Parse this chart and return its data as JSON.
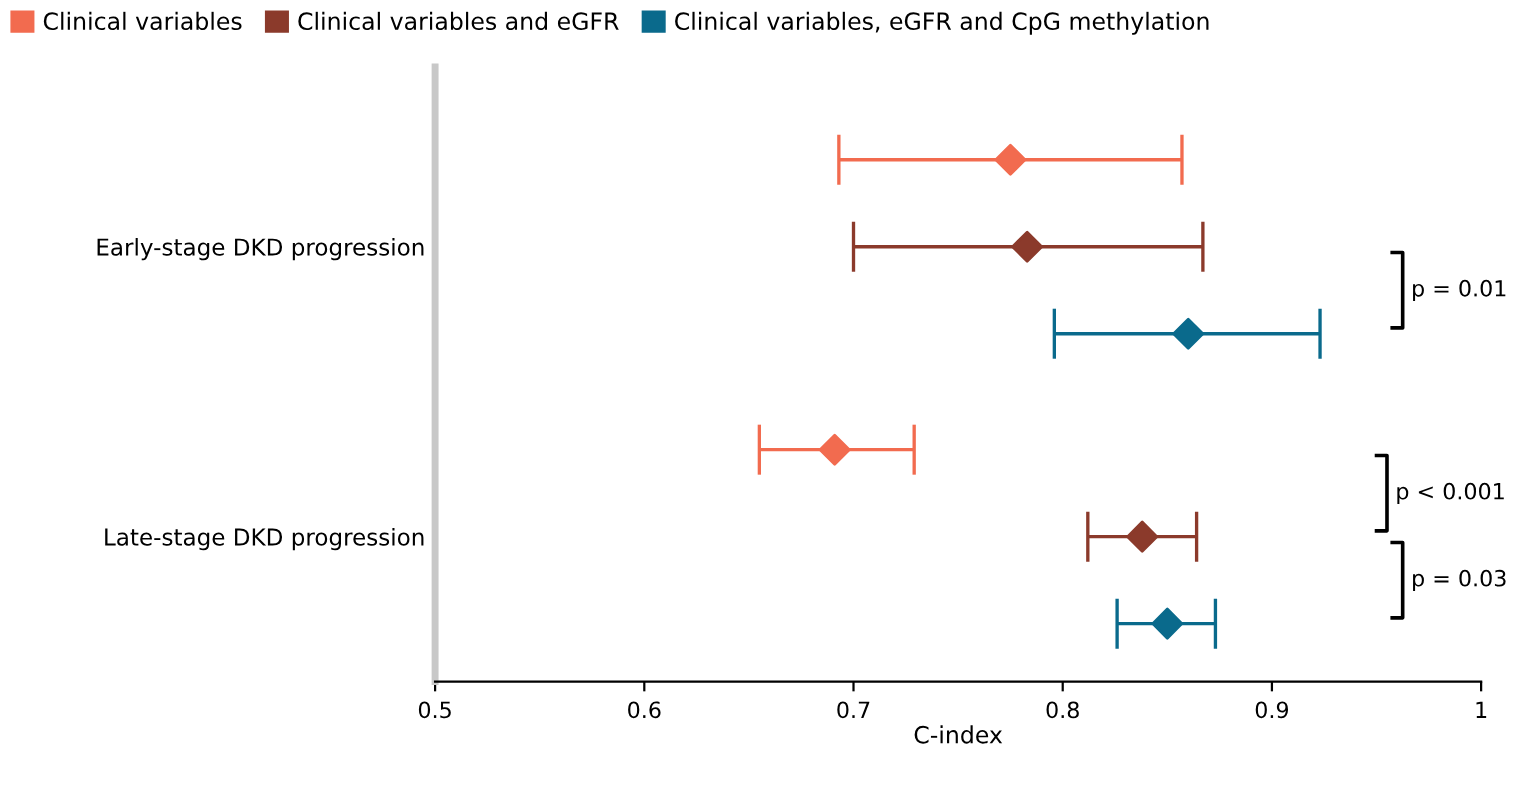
{
  "chart_data": {
    "type": "scatter",
    "orientation": "horizontal",
    "xlabel": "C-index",
    "categories": [
      "Early-stage DKD progression",
      "Late-stage DKD progression"
    ],
    "series": [
      {
        "name": "Clinical variables",
        "color": "#f26b4f",
        "values": [
          0.775,
          0.691
        ],
        "errors": [
          [
            0.693,
            0.857
          ],
          [
            0.655,
            0.729
          ]
        ]
      },
      {
        "name": "Clinical variables and eGFR",
        "color": "#8b3a2b",
        "values": [
          0.783,
          0.838
        ],
        "errors": [
          [
            0.7,
            0.867
          ],
          [
            0.812,
            0.864
          ]
        ]
      },
      {
        "name": "Clinical variables, eGFR and CpG methylation",
        "color": "#0a6a8c",
        "values": [
          0.86,
          0.85
        ],
        "errors": [
          [
            0.796,
            0.923
          ],
          [
            0.826,
            0.873
          ]
        ]
      }
    ],
    "xlim": [
      0.5,
      1
    ],
    "xticks": [
      0.5,
      0.6,
      0.7,
      0.8,
      0.9,
      1
    ],
    "annotations": [
      "p = 0.01",
      "p < 0.001",
      "p = 0.03"
    ],
    "marker": "diamond",
    "legend": "top",
    "grid": false
  }
}
